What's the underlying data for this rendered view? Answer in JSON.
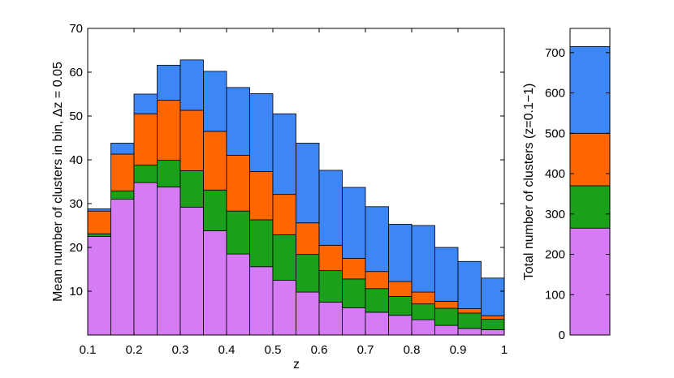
{
  "colors": {
    "purple": "#d47bf5",
    "green": "#1aa01a",
    "orange": "#ff6600",
    "blue": "#3d86f5"
  },
  "chart_data": [
    {
      "type": "bar",
      "stacked": true,
      "bins": [
        0.1,
        0.15,
        0.2,
        0.25,
        0.3,
        0.35,
        0.4,
        0.45,
        0.5,
        0.55,
        0.6,
        0.65,
        0.7,
        0.75,
        0.8,
        0.85,
        0.9,
        0.95
      ],
      "bin_width": 0.05,
      "series_colors": [
        "purple",
        "green",
        "orange",
        "blue"
      ],
      "series": [
        {
          "color": "purple",
          "values": [
            22.5,
            31.0,
            34.8,
            33.8,
            29.2,
            23.8,
            18.5,
            15.6,
            12.5,
            9.8,
            7.5,
            6.2,
            5.2,
            4.5,
            3.5,
            2.2,
            1.5,
            1.2
          ]
        },
        {
          "color": "green",
          "values": [
            0.6,
            1.9,
            4.0,
            6.1,
            8.3,
            9.3,
            9.8,
            10.7,
            10.4,
            8.6,
            7.2,
            6.6,
            5.4,
            4.3,
            3.6,
            3.9,
            3.5,
            2.4
          ]
        },
        {
          "color": "orange",
          "values": [
            5.2,
            8.4,
            11.7,
            13.7,
            13.8,
            13.4,
            12.7,
            11.0,
            9.2,
            7.2,
            5.8,
            4.7,
            3.9,
            3.4,
            2.7,
            1.6,
            1.0,
            0.8
          ]
        },
        {
          "color": "blue",
          "values": [
            0.5,
            2.5,
            4.5,
            8.0,
            11.5,
            13.7,
            15.5,
            17.8,
            18.4,
            18.2,
            17.1,
            16.2,
            14.8,
            13.1,
            15.2,
            12.3,
            10.8,
            8.6
          ]
        }
      ],
      "xlim": [
        0.1,
        1
      ],
      "ylim": [
        0,
        70
      ],
      "xticks": [
        "0.1",
        "0.2",
        "0.3",
        "0.4",
        "0.5",
        "0.6",
        "0.7",
        "0.8",
        "0.9",
        "1"
      ],
      "yticks": [
        "10",
        "20",
        "30",
        "40",
        "50",
        "60",
        "70"
      ],
      "xlabel": "z",
      "ylabel": "Mean number of clusters in bin, Δz = 0.05",
      "grid": false
    },
    {
      "type": "bar",
      "stacked": true,
      "categories": [
        ""
      ],
      "series_colors": [
        "purple",
        "green",
        "orange",
        "blue"
      ],
      "series": [
        {
          "color": "purple",
          "values": [
            265
          ]
        },
        {
          "color": "green",
          "values": [
            105
          ]
        },
        {
          "color": "orange",
          "values": [
            130
          ]
        },
        {
          "color": "blue",
          "values": [
            215
          ]
        }
      ],
      "ylim": [
        0,
        760
      ],
      "yticks": [
        "0",
        "100",
        "200",
        "300",
        "400",
        "500",
        "600",
        "700"
      ],
      "ylabel": "Total number of clusters (z=0.1−1)",
      "grid": false
    }
  ]
}
